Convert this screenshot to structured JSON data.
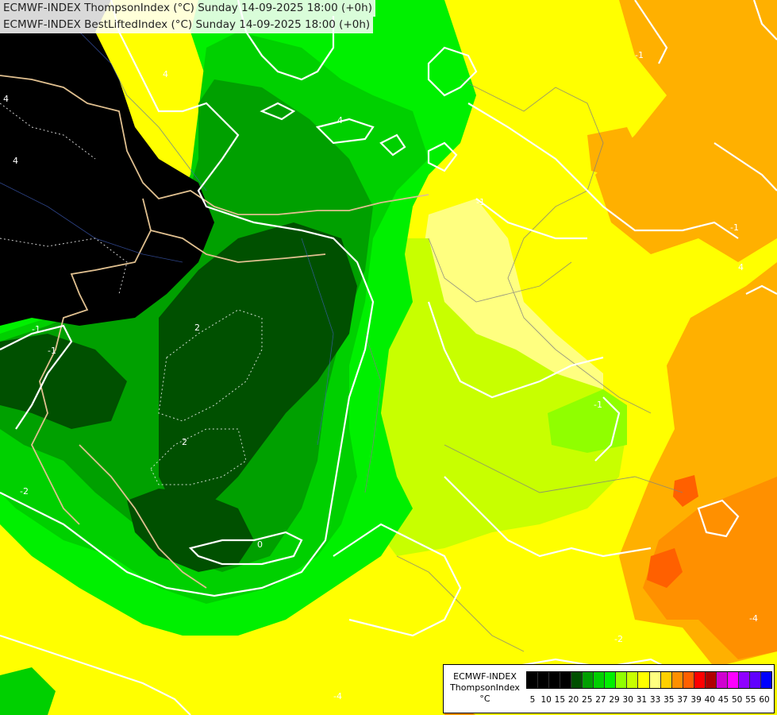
{
  "titles": {
    "line1": "ECMWF-INDEX ThompsonIndex (°C) Sunday 14-09-2025 18:00 (+0h)",
    "line2": "ECMWF-INDEX BestLiftedIndex (°C) Sunday 14-09-2025 18:00 (+0h)"
  },
  "legend": {
    "model": "ECMWF-INDEX",
    "parameter": "ThompsonIndex",
    "unit": "°C",
    "colors": [
      "#000000",
      "#000000",
      "#000000",
      "#000000",
      "#005000",
      "#00a000",
      "#00d000",
      "#00f000",
      "#90ff00",
      "#c8ff00",
      "#ffff00",
      "#ffff80",
      "#ffd000",
      "#ff9000",
      "#ff6000",
      "#ff0000",
      "#b00000",
      "#d000d0",
      "#ff00ff",
      "#9000ff",
      "#6000ff",
      "#0000ff"
    ],
    "ticks": [
      "5",
      "10",
      "15",
      "20",
      "25",
      "27",
      "29",
      "30",
      "31",
      "33",
      "35",
      "37",
      "39",
      "40",
      "45",
      "50",
      "55",
      "60"
    ]
  },
  "map": {
    "contour_labels": [
      "4",
      "4",
      "-4",
      "4",
      "-1",
      "4",
      "2",
      "-1",
      "2",
      "-2",
      "0",
      "-1",
      "4",
      "-1",
      "-2",
      "-4",
      "-1",
      "-1"
    ]
  }
}
